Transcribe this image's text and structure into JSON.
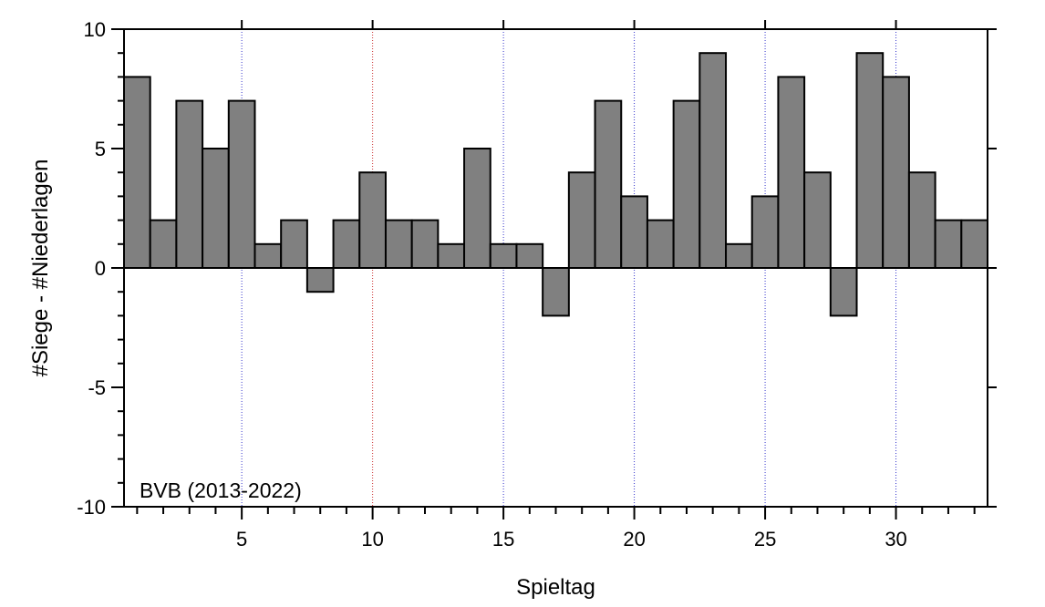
{
  "chart_data": {
    "type": "bar",
    "xlabel": "Spieltag",
    "ylabel": "#Siege - #Niederlagen",
    "annotation": "BVB (2013-2022)",
    "x": [
      1,
      2,
      3,
      4,
      5,
      6,
      7,
      8,
      9,
      10,
      11,
      12,
      13,
      14,
      15,
      16,
      17,
      18,
      19,
      20,
      21,
      22,
      23,
      24,
      25,
      26,
      27,
      28,
      29,
      30,
      31,
      32,
      33
    ],
    "values": [
      8,
      2,
      7,
      5,
      7,
      1,
      2,
      -1,
      2,
      4,
      2,
      2,
      1,
      5,
      1,
      1,
      -2,
      4,
      7,
      3,
      2,
      7,
      9,
      1,
      3,
      8,
      4,
      -2,
      9,
      8,
      4,
      2,
      2
    ],
    "xlim": [
      0.5,
      33.5
    ],
    "ylim": [
      -10,
      10
    ],
    "x_ticks": [
      5,
      10,
      15,
      20,
      25,
      30
    ],
    "y_ticks": [
      10,
      5,
      0,
      -5,
      -10
    ],
    "grid": "vertical dotted at major x ticks",
    "colors": {
      "bar_fill": "#808080",
      "bar_edge": "#000000",
      "grid_blue": "#3333cc",
      "grid_red": "#cc3333"
    }
  }
}
